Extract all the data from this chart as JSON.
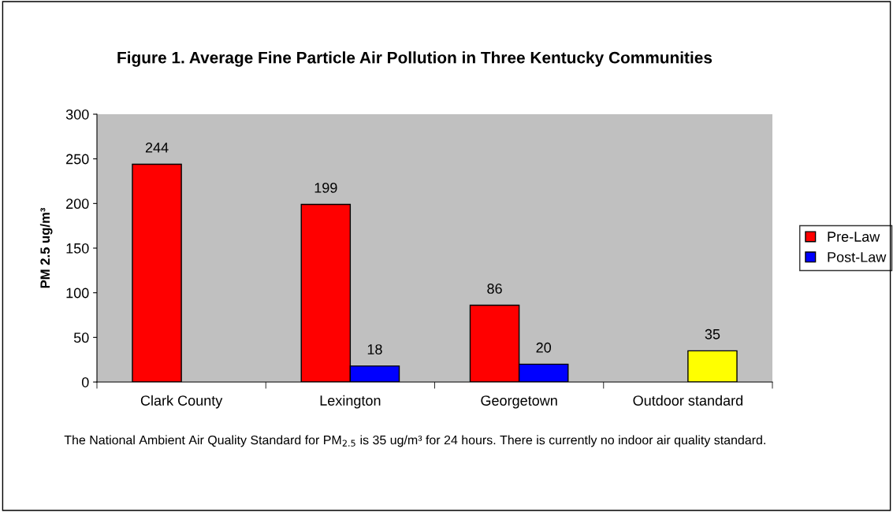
{
  "chart_data": {
    "type": "bar",
    "title": "Figure 1. Average Fine Particle Air Pollution in Three Kentucky Communities",
    "ylabel": "PM 2.5 ug/m³",
    "categories": [
      "Clark County",
      "Lexington",
      "Georgetown",
      "Outdoor standard"
    ],
    "series": [
      {
        "name": "Pre-Law",
        "color": "#ff0000",
        "values": [
          244,
          199,
          86,
          null
        ]
      },
      {
        "name": "Post-Law",
        "color": "#0000ff",
        "colors": [
          "#0000ff",
          "#0000ff",
          "#0000ff",
          "#ffff00"
        ],
        "values": [
          null,
          18,
          20,
          35
        ]
      }
    ],
    "ylim": [
      0,
      300
    ],
    "yticks": [
      0,
      50,
      100,
      150,
      200,
      250,
      300
    ],
    "data_labels": true,
    "grid": false,
    "legend": "right",
    "annotations": [
      "The National Ambient Air Quality Standard for PM$_{2.5}$ is 35 ug/m³ for 24 hours. There is currently no indoor air quality standard."
    ]
  }
}
